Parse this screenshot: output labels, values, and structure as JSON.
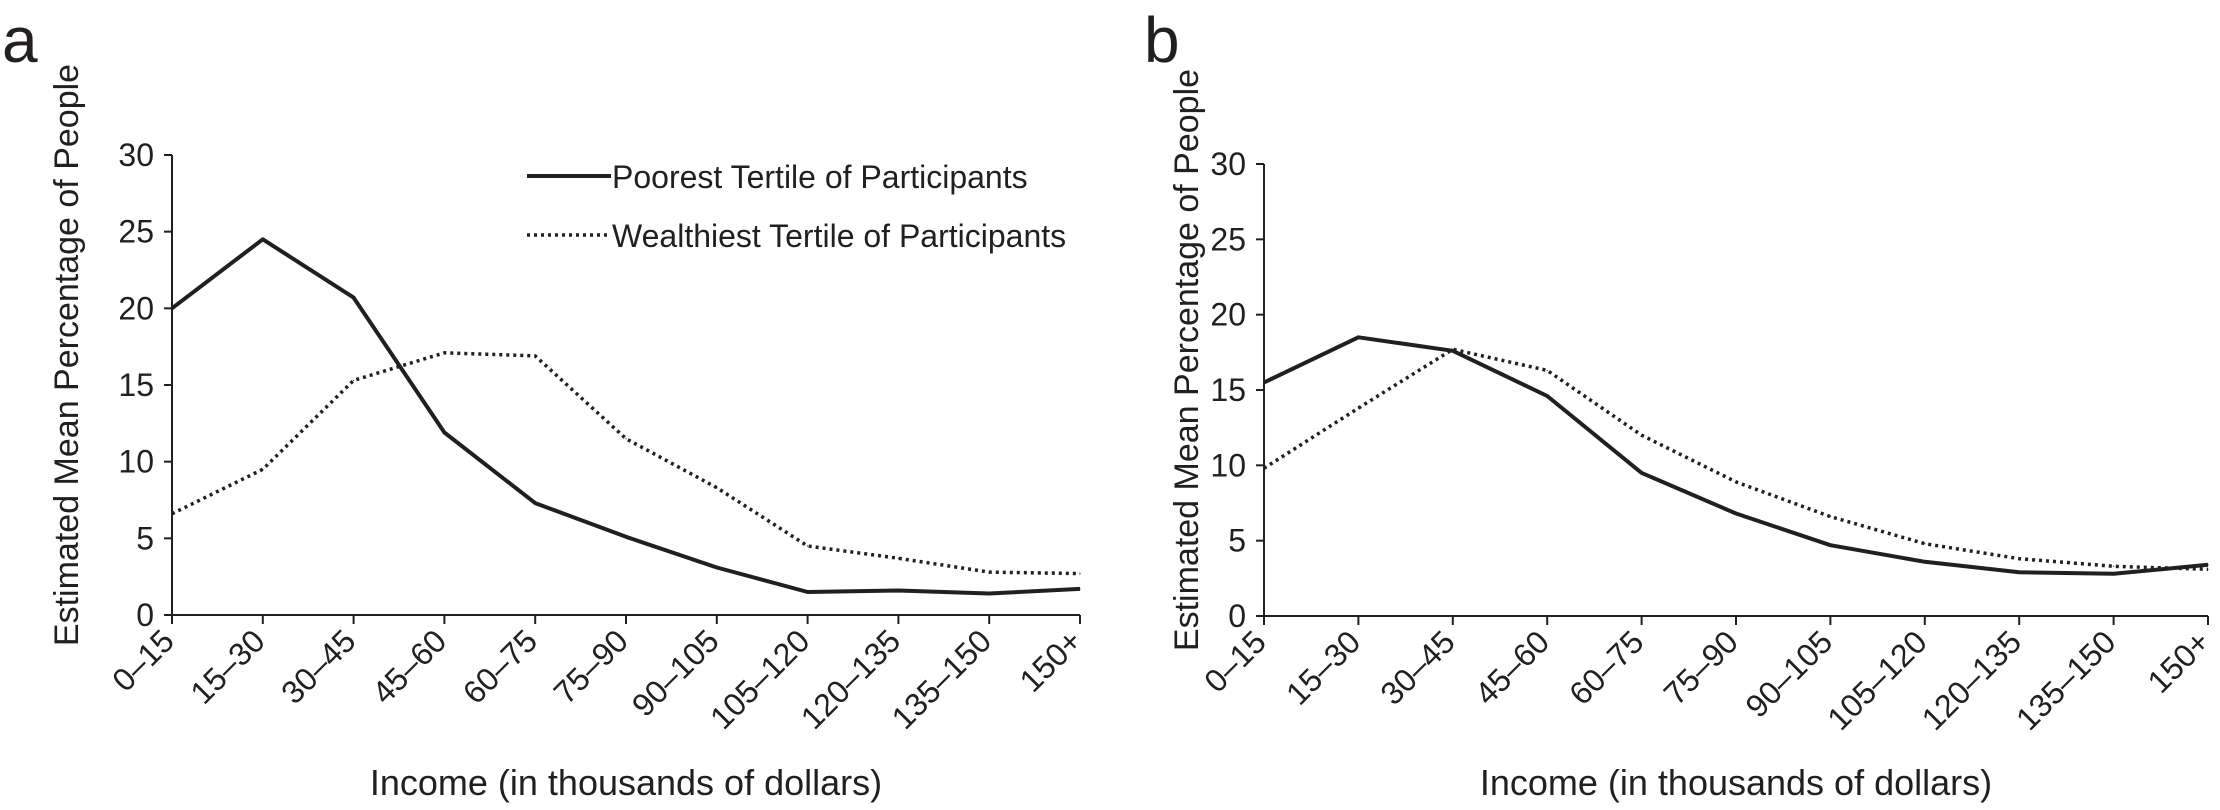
{
  "chart_data": [
    {
      "panel_label": "a",
      "type": "line",
      "xlabel": "Income (in thousands of dollars)",
      "ylabel": "Estimated Mean Percentage of People",
      "ylim": [
        0,
        30
      ],
      "yticks": [
        0,
        5,
        10,
        15,
        20,
        25,
        30
      ],
      "categories": [
        "0–15",
        "15–30",
        "30–45",
        "45–60",
        "60–75",
        "75–90",
        "90–105",
        "105–120",
        "120–135",
        "135–150",
        "150+"
      ],
      "legend_position": "top-right",
      "series": [
        {
          "name": "Poorest Tertile of Participants",
          "style": "solid",
          "values": [
            20.0,
            24.5,
            20.7,
            11.9,
            7.3,
            5.1,
            3.1,
            1.5,
            1.6,
            1.4,
            1.7
          ]
        },
        {
          "name": "Wealthiest Tertile of Participants",
          "style": "dotted",
          "values": [
            6.6,
            9.5,
            15.3,
            17.1,
            16.9,
            11.5,
            8.3,
            4.5,
            3.7,
            2.8,
            2.7
          ]
        }
      ]
    },
    {
      "panel_label": "b",
      "type": "line",
      "xlabel": "Income (in thousands of dollars)",
      "ylabel": "Estimated Mean Percentage of People",
      "ylim": [
        0,
        30
      ],
      "yticks": [
        0,
        5,
        10,
        15,
        20,
        25,
        30
      ],
      "categories": [
        "0–15",
        "15–30",
        "30–45",
        "45–60",
        "60–75",
        "75–90",
        "90–105",
        "105–120",
        "120–135",
        "135–150",
        "150+"
      ],
      "series": [
        {
          "style": "solid",
          "values": [
            15.5,
            18.5,
            17.6,
            14.6,
            9.5,
            6.8,
            4.7,
            3.6,
            2.9,
            2.8,
            3.4
          ]
        },
        {
          "style": "dotted",
          "values": [
            9.8,
            13.8,
            17.7,
            16.3,
            12.0,
            8.9,
            6.6,
            4.8,
            3.8,
            3.3,
            3.1
          ]
        }
      ]
    }
  ]
}
